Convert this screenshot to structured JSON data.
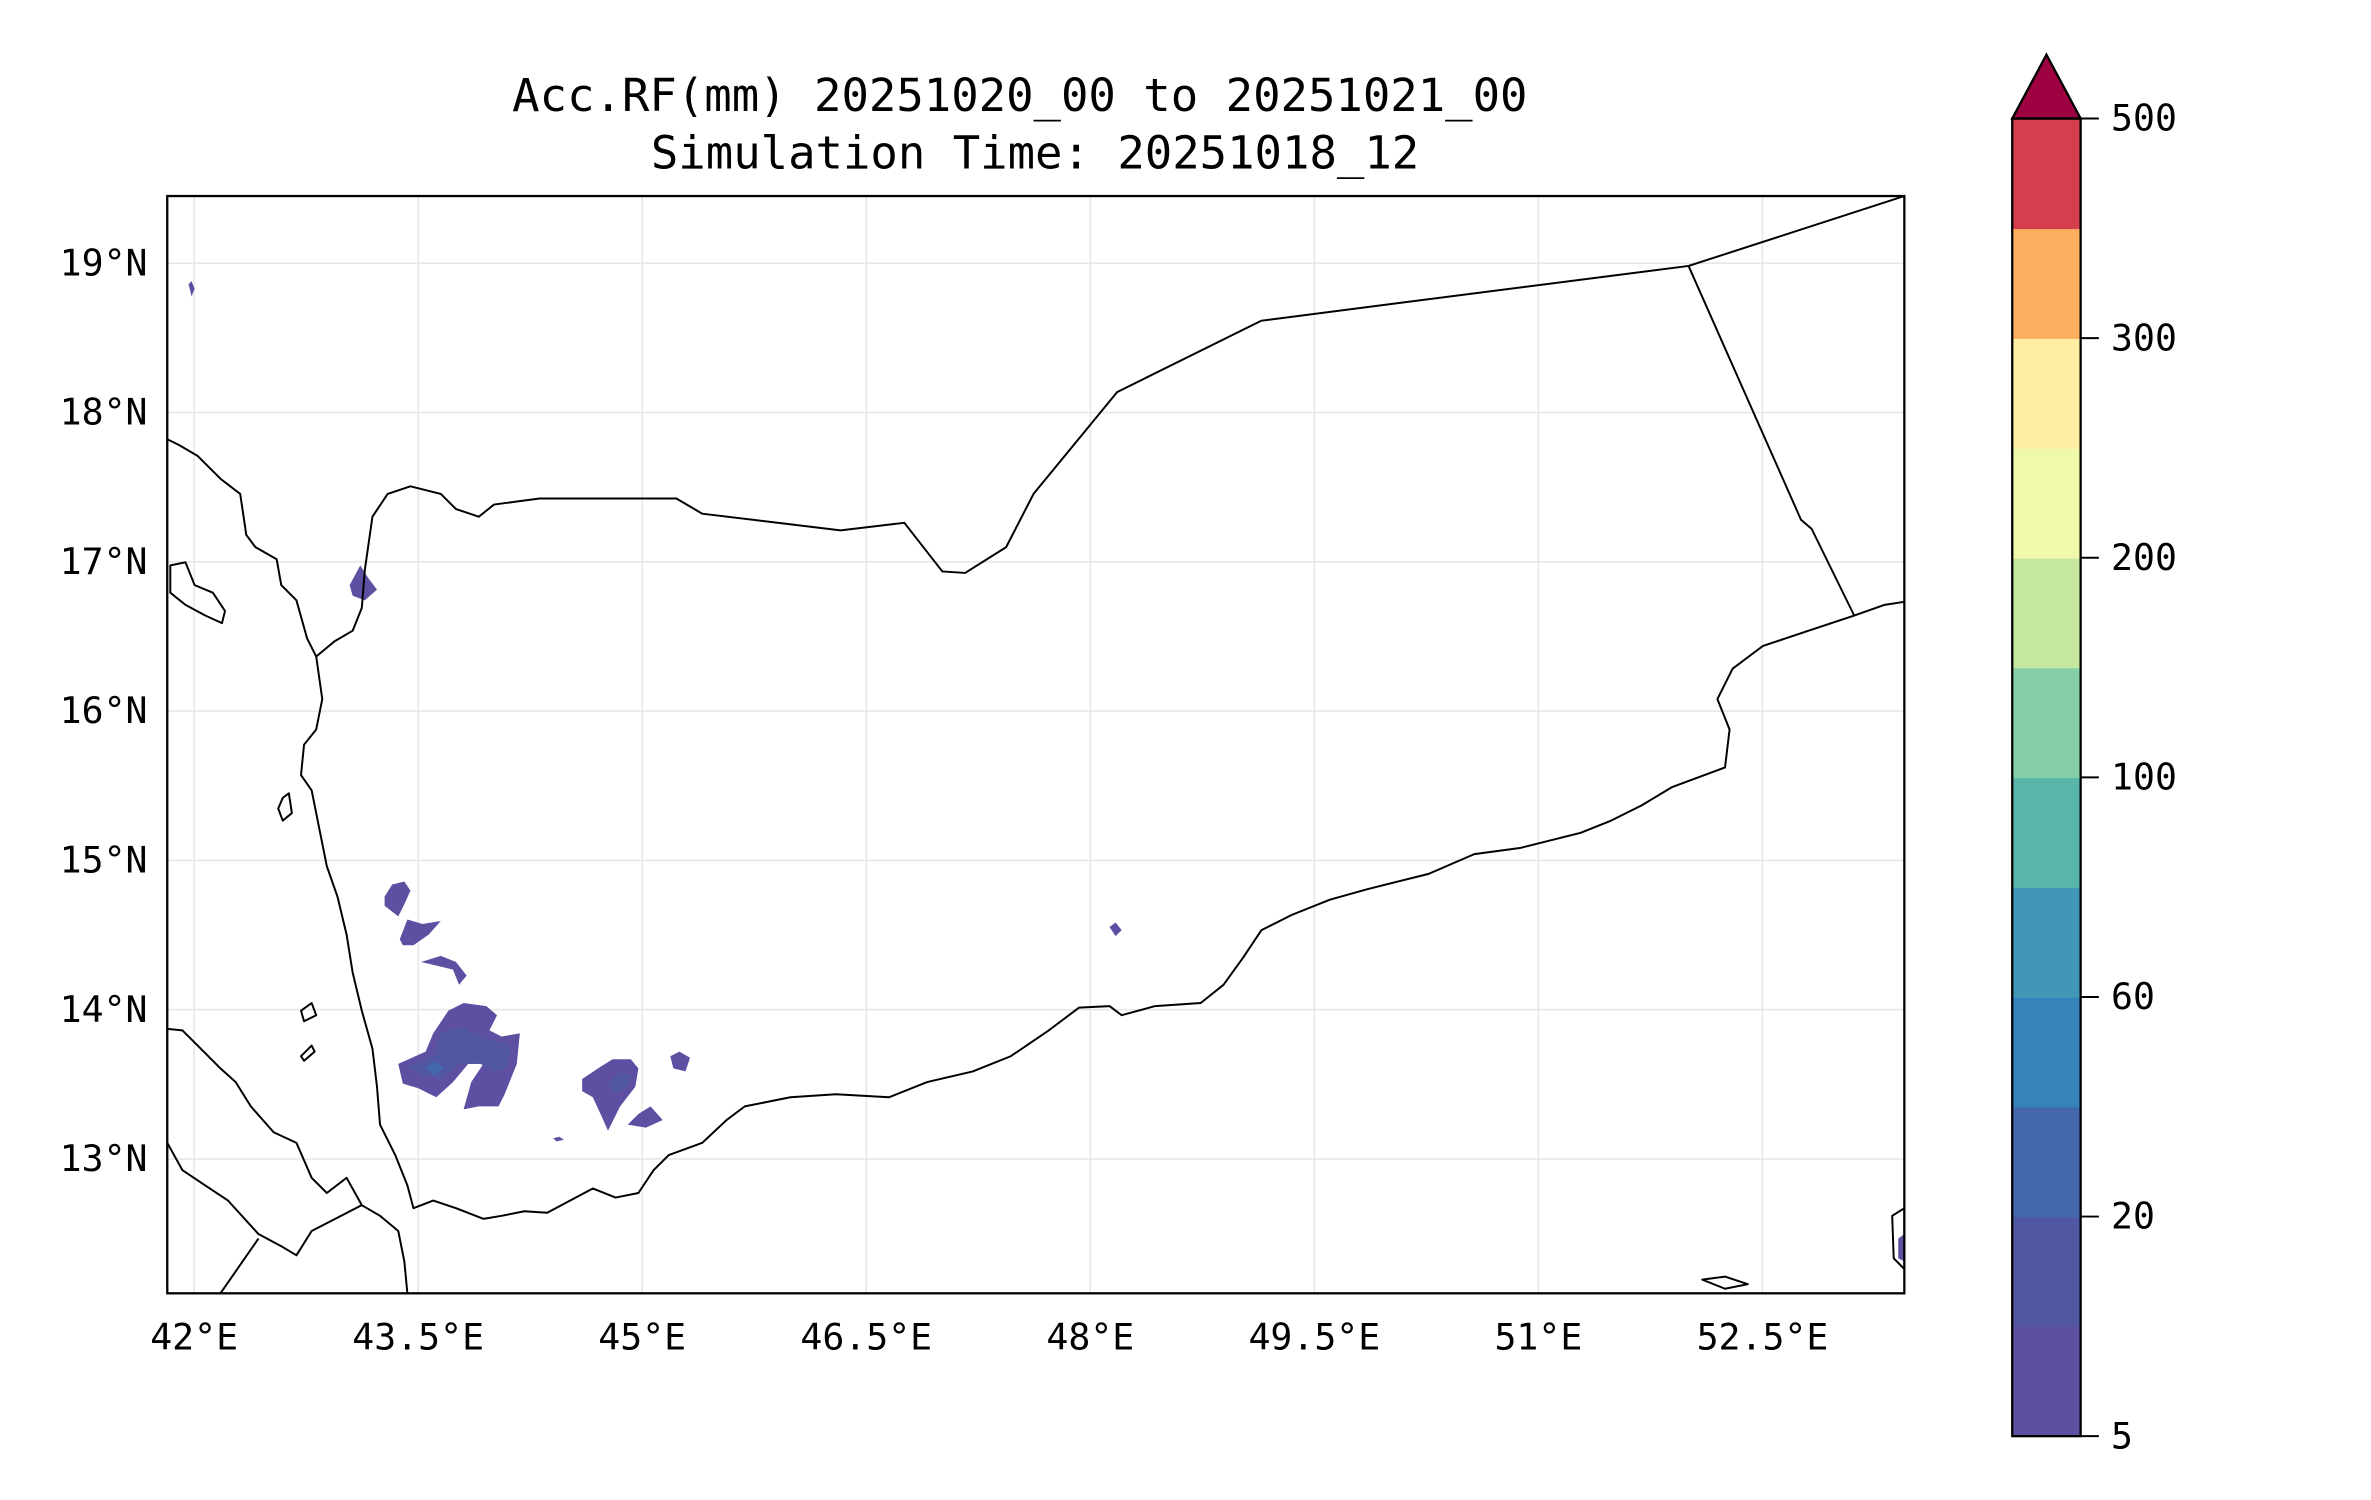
{
  "chart_data": {
    "type": "heatmap",
    "subtype": "filled-contour-map",
    "title_line1": "Acc.RF(mm) 20251020_00 to 20251021_00",
    "title_line2": "Simulation Time: 20251018_12",
    "region": "Yemen",
    "lon_range": [
      41.82,
      53.45
    ],
    "lat_range": [
      12.1,
      19.45
    ],
    "x_ticks": [
      {
        "value": 42,
        "label": "42°E"
      },
      {
        "value": 43.5,
        "label": "43.5°E"
      },
      {
        "value": 45,
        "label": "45°E"
      },
      {
        "value": 46.5,
        "label": "46.5°E"
      },
      {
        "value": 48,
        "label": "48°E"
      },
      {
        "value": 49.5,
        "label": "49.5°E"
      },
      {
        "value": 51,
        "label": "51°E"
      },
      {
        "value": 52.5,
        "label": "52.5°E"
      }
    ],
    "y_ticks": [
      {
        "value": 13,
        "label": "13°N"
      },
      {
        "value": 14,
        "label": "14°N"
      },
      {
        "value": 15,
        "label": "15°N"
      },
      {
        "value": 16,
        "label": "16°N"
      },
      {
        "value": 17,
        "label": "17°N"
      },
      {
        "value": 18,
        "label": "18°N"
      },
      {
        "value": 19,
        "label": "19°N"
      }
    ],
    "grid": true,
    "colorbar": {
      "units": "mm",
      "levels": [
        5,
        10,
        20,
        40,
        60,
        80,
        100,
        150,
        200,
        250,
        300,
        400,
        500
      ],
      "colors": [
        "#5e4fa2",
        "#5257a4",
        "#4467ad",
        "#3682ba",
        "#4198b6",
        "#59b4aa",
        "#84cfa6",
        "#c5e79f",
        "#f0f8aa",
        "#feeda2",
        "#fdae61",
        "#d53e4f"
      ],
      "extend_color": "#9e0142",
      "extend": "max",
      "tick_labels": [
        "5",
        "20",
        "60",
        "100",
        "200",
        "300",
        "500"
      ],
      "tick_values": [
        5,
        20,
        60,
        100,
        200,
        300,
        500
      ],
      "placement": "right"
    },
    "rain_features": [
      {
        "area": "western highlands near 43.8°E 13.8°N",
        "max_bin_mm": "20-40"
      },
      {
        "area": "near 44.9°E 13.5°N",
        "max_bin_mm": "10-20"
      },
      {
        "area": "scattered cells 43.3-45.3°E 13.1-14.8°N",
        "max_bin_mm": "5-10"
      }
    ]
  }
}
